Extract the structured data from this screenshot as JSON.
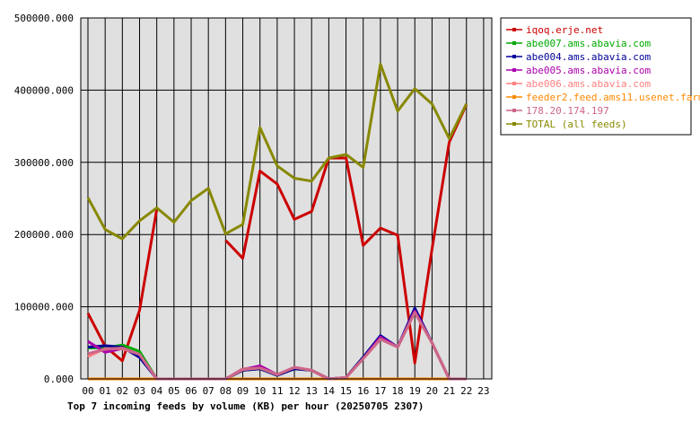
{
  "chart_data": {
    "type": "line",
    "title": "Top 7 incoming feeds by volume (KB) per hour (20250705 2307)",
    "xlabel": "",
    "ylabel": "",
    "categories": [
      "00",
      "01",
      "02",
      "03",
      "04",
      "05",
      "06",
      "07",
      "08",
      "09",
      "10",
      "11",
      "12",
      "13",
      "14",
      "15",
      "16",
      "17",
      "18",
      "19",
      "20",
      "21",
      "22",
      "23"
    ],
    "ylim": [
      0,
      500000
    ],
    "yticks": [
      "0.000",
      "100000.000",
      "200000.000",
      "300000.000",
      "400000.000",
      "500000.000"
    ],
    "ytick_values": [
      0,
      100000,
      200000,
      300000,
      400000,
      500000
    ],
    "grid": true,
    "legend_position": "right",
    "plot_background": "#e0e0e0",
    "series": [
      {
        "name": "iqoq.erje.net",
        "color": "#cc0000",
        "values": [
          91000,
          45000,
          25000,
          95000,
          235000,
          null,
          null,
          null,
          192000,
          167000,
          288000,
          270000,
          221000,
          232000,
          306000,
          306000,
          185000,
          209000,
          199000,
          22000,
          180000,
          328000,
          380000,
          null
        ]
      },
      {
        "name": "abe007.ams.abavia.com",
        "color": "#00aa00",
        "values": [
          43000,
          43000,
          47000,
          38000,
          0,
          0,
          0,
          0,
          0,
          12000,
          14000,
          5000,
          14000,
          12000,
          0,
          2000,
          30000,
          58000,
          44000,
          95000,
          50000,
          0,
          0,
          null
        ]
      },
      {
        "name": "abe004.ams.abavia.com",
        "color": "#000099",
        "values": [
          44000,
          46000,
          44000,
          30000,
          0,
          0,
          0,
          0,
          0,
          12000,
          14000,
          5000,
          14000,
          12000,
          0,
          2000,
          30000,
          60000,
          44000,
          98000,
          50000,
          0,
          0,
          null
        ]
      },
      {
        "name": "abe005.ams.abavia.com",
        "color": "#aa00aa",
        "values": [
          52000,
          37000,
          42000,
          34000,
          0,
          0,
          0,
          0,
          0,
          13000,
          18000,
          6000,
          16000,
          12000,
          0,
          2000,
          28000,
          58000,
          44000,
          94000,
          50000,
          0,
          0,
          null
        ]
      },
      {
        "name": "abe006.ams.abavia.com",
        "color": "#ff8080",
        "values": [
          31000,
          42000,
          42000,
          34000,
          0,
          0,
          0,
          0,
          0,
          13000,
          15000,
          6000,
          16000,
          12000,
          0,
          2000,
          28000,
          55000,
          44000,
          92000,
          50000,
          0,
          0,
          null
        ]
      },
      {
        "name": "feeder2.feed.ams11.usenet.farm",
        "color": "#ff8800",
        "values": [
          0,
          0,
          0,
          0,
          0,
          0,
          0,
          0,
          0,
          0,
          0,
          0,
          0,
          0,
          0,
          0,
          0,
          0,
          0,
          0,
          0,
          0,
          0,
          null
        ]
      },
      {
        "name": "178.20.174.197",
        "color": "#cc6688",
        "values": [
          35000,
          41000,
          43000,
          34000,
          0,
          0,
          0,
          0,
          0,
          14000,
          15000,
          6000,
          16000,
          12000,
          0,
          2000,
          28000,
          55000,
          44000,
          92000,
          50000,
          0,
          0,
          null
        ]
      },
      {
        "name": "TOTAL (all feeds)",
        "color": "#888800",
        "values": [
          251000,
          207000,
          194000,
          219000,
          237000,
          217000,
          247000,
          264000,
          201000,
          214000,
          348000,
          295000,
          278000,
          274000,
          306000,
          311000,
          293000,
          436000,
          371000,
          402000,
          381000,
          333000,
          381000,
          null
        ]
      }
    ]
  }
}
